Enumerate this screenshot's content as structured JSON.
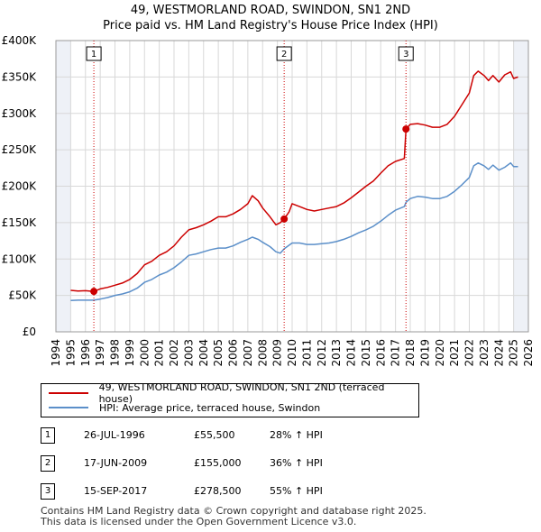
{
  "title_line1": "49, WESTMORLAND ROAD, SWINDON, SN1 2ND",
  "title_line2": "Price paid vs. HM Land Registry's House Price Index (HPI)",
  "legend": {
    "property_label": "49, WESTMORLAND ROAD, SWINDON, SN1 2ND (terraced house)",
    "hpi_label": "HPI: Average price, terraced house, Swindon"
  },
  "sales": [
    {
      "num": "1",
      "date": "26-JUL-1996",
      "price": "£55,500",
      "hpi": "28% ↑ HPI"
    },
    {
      "num": "2",
      "date": "17-JUN-2009",
      "price": "£155,000",
      "hpi": "36% ↑ HPI"
    },
    {
      "num": "3",
      "date": "15-SEP-2017",
      "price": "£278,500",
      "hpi": "55% ↑ HPI"
    }
  ],
  "footer_line1": "Contains HM Land Registry data © Crown copyright and database right 2025.",
  "footer_line2": "This data is licensed under the Open Government Licence v3.0.",
  "colors": {
    "property": "#cc0000",
    "hpi": "#5b8fc9",
    "grid": "#d8d8d8",
    "shade": "#eef1f7",
    "marker_line": "#cc0000"
  },
  "chart_data": {
    "type": "line",
    "xlim": [
      1994,
      2026
    ],
    "ylim": [
      0,
      400000
    ],
    "x_ticks": [
      "1994",
      "1995",
      "1996",
      "1997",
      "1998",
      "1999",
      "2000",
      "2001",
      "2002",
      "2003",
      "2004",
      "2005",
      "2006",
      "2007",
      "2008",
      "2009",
      "2010",
      "2011",
      "2012",
      "2013",
      "2014",
      "2015",
      "2016",
      "2017",
      "2018",
      "2019",
      "2020",
      "2021",
      "2022",
      "2023",
      "2024",
      "2025",
      "2026"
    ],
    "y_ticks": [
      {
        "value": 0,
        "label": "£0"
      },
      {
        "value": 50000,
        "label": "£50K"
      },
      {
        "value": 100000,
        "label": "£100K"
      },
      {
        "value": 150000,
        "label": "£150K"
      },
      {
        "value": 200000,
        "label": "£200K"
      },
      {
        "value": 250000,
        "label": "£250K"
      },
      {
        "value": 300000,
        "label": "£300K"
      },
      {
        "value": 350000,
        "label": "£350K"
      },
      {
        "value": 400000,
        "label": "£400K"
      }
    ],
    "sale_markers": [
      {
        "label": "1",
        "year": 1996.57,
        "price": 55500
      },
      {
        "label": "2",
        "year": 2009.46,
        "price": 155000
      },
      {
        "label": "3",
        "year": 2017.71,
        "price": 278500
      }
    ],
    "series": [
      {
        "name": "49, WESTMORLAND ROAD, SWINDON, SN1 2ND (terraced house)",
        "x": [
          1995,
          1995.5,
          1996,
          1996.57,
          1997,
          1997.5,
          1998,
          1998.5,
          1999,
          1999.5,
          2000,
          2000.5,
          2001,
          2001.5,
          2002,
          2002.5,
          2003,
          2003.5,
          2004,
          2004.5,
          2005,
          2005.5,
          2006,
          2006.5,
          2007,
          2007.3,
          2007.7,
          2008,
          2008.5,
          2008.9,
          2009.2,
          2009.46,
          2009.8,
          2010,
          2010.5,
          2011,
          2011.5,
          2012,
          2012.5,
          2013,
          2013.5,
          2014,
          2014.5,
          2015,
          2015.5,
          2016,
          2016.5,
          2017,
          2017.6,
          2017.71,
          2018,
          2018.5,
          2019,
          2019.5,
          2020,
          2020.5,
          2021,
          2021.5,
          2022,
          2022.3,
          2022.6,
          2023,
          2023.3,
          2023.6,
          2024,
          2024.4,
          2024.8,
          2025,
          2025.3
        ],
        "values": [
          57000,
          56000,
          56500,
          55500,
          59000,
          61000,
          64000,
          67000,
          72000,
          80000,
          92000,
          97000,
          105000,
          110000,
          118000,
          130000,
          140000,
          143000,
          147000,
          152000,
          158000,
          158000,
          162000,
          168000,
          176000,
          187000,
          180000,
          170000,
          158000,
          147000,
          150000,
          155000,
          165000,
          176000,
          172000,
          168000,
          166000,
          168000,
          170000,
          172000,
          177000,
          184000,
          192000,
          200000,
          207000,
          218000,
          228000,
          234000,
          238000,
          278500,
          285000,
          286000,
          284000,
          281000,
          281000,
          285000,
          296000,
          312000,
          328000,
          352000,
          358000,
          352000,
          345000,
          352000,
          343000,
          353000,
          357000,
          348000,
          350000
        ]
      },
      {
        "name": "HPI: Average price, terraced house, Swindon",
        "x": [
          1995,
          1995.5,
          1996,
          1996.57,
          1997,
          1997.5,
          1998,
          1998.5,
          1999,
          1999.5,
          2000,
          2000.5,
          2001,
          2001.5,
          2002,
          2002.5,
          2003,
          2003.5,
          2004,
          2004.5,
          2005,
          2005.5,
          2006,
          2006.5,
          2007,
          2007.3,
          2007.7,
          2008,
          2008.5,
          2008.9,
          2009.2,
          2009.46,
          2009.8,
          2010,
          2010.5,
          2011,
          2011.5,
          2012,
          2012.5,
          2013,
          2013.5,
          2014,
          2014.5,
          2015,
          2015.5,
          2016,
          2016.5,
          2017,
          2017.6,
          2017.71,
          2018,
          2018.5,
          2019,
          2019.5,
          2020,
          2020.5,
          2021,
          2021.5,
          2022,
          2022.3,
          2022.6,
          2023,
          2023.3,
          2023.6,
          2024,
          2024.4,
          2024.8,
          2025,
          2025.3
        ],
        "values": [
          43000,
          43500,
          43500,
          43500,
          45000,
          47000,
          50000,
          52000,
          55000,
          60000,
          68000,
          72000,
          78000,
          82000,
          88000,
          96000,
          105000,
          107000,
          110000,
          113000,
          115000,
          115000,
          118000,
          123000,
          127000,
          130000,
          127000,
          123000,
          117000,
          110000,
          108000,
          114000,
          119000,
          122000,
          122000,
          120000,
          120000,
          121000,
          122000,
          124000,
          127000,
          131000,
          136000,
          140000,
          145000,
          152000,
          160000,
          167000,
          172000,
          178000,
          183000,
          186000,
          185000,
          183000,
          183000,
          186000,
          193000,
          202000,
          212000,
          228000,
          232000,
          228000,
          223000,
          229000,
          222000,
          226000,
          232000,
          227000,
          227000
        ]
      }
    ]
  }
}
